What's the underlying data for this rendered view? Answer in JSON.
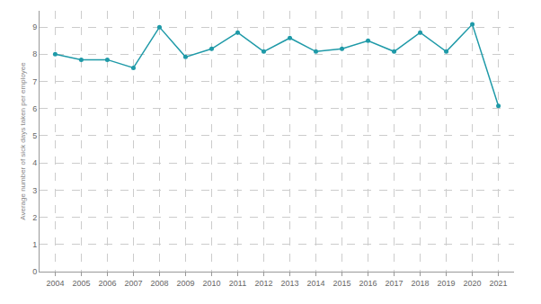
{
  "chart_data": {
    "type": "line",
    "y_label": "Average number of sick days taken per employee",
    "categories": [
      "2004",
      "2005",
      "2006",
      "2007",
      "2008",
      "2009",
      "2010",
      "2011",
      "2012",
      "2013",
      "2014",
      "2015",
      "2016",
      "2017",
      "2018",
      "2019",
      "2020",
      "2021"
    ],
    "values": [
      8.0,
      7.8,
      7.8,
      7.5,
      9.0,
      7.9,
      8.2,
      8.8,
      8.1,
      8.6,
      8.1,
      8.2,
      8.5,
      8.1,
      8.8,
      8.1,
      9.1,
      6.1
    ],
    "color": "#1f9aa8",
    "marker": "circle",
    "line_style": "solid",
    "ylim": [
      0,
      9.6
    ],
    "yticks": [
      0,
      1,
      2,
      3,
      4,
      5,
      6,
      7,
      8,
      9
    ],
    "grid": true
  }
}
